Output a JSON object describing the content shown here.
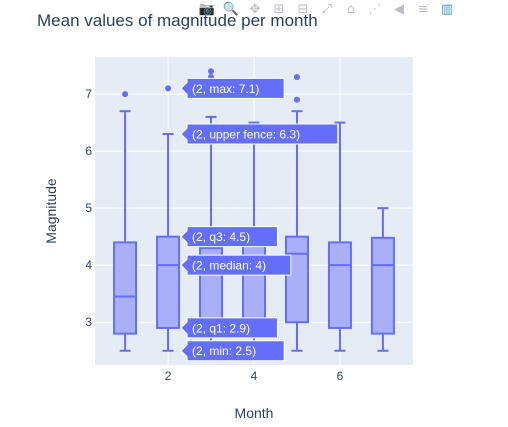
{
  "chart_data": {
    "type": "box",
    "title": "Mean values of magnitude per month",
    "xlabel": "Month",
    "ylabel": "Magnitude",
    "xlim": [
      0.3,
      7.7
    ],
    "ylim": [
      2.25,
      7.65
    ],
    "xticks": [
      2,
      4,
      6
    ],
    "yticks": [
      3,
      4,
      5,
      6,
      7
    ],
    "grid": true,
    "box_color": "#636efa",
    "box_fill": "#aab0f8",
    "plot_bg": "#e5ecf6",
    "boxes": [
      {
        "x": 1,
        "min": 2.5,
        "q1": 2.8,
        "median": 3.45,
        "q3": 4.4,
        "upper_fence": 6.7,
        "outliers": [
          7.0
        ]
      },
      {
        "x": 2,
        "min": 2.5,
        "q1": 2.9,
        "median": 4.0,
        "q3": 4.5,
        "upper_fence": 6.3,
        "outliers": [
          7.1
        ]
      },
      {
        "x": 3,
        "min": 2.5,
        "q1": 2.9,
        "median": 4.3,
        "q3": 4.5,
        "upper_fence": 6.6,
        "outliers": [
          7.3,
          7.4
        ]
      },
      {
        "x": 4,
        "min": 2.5,
        "q1": 2.9,
        "median": 4.0,
        "q3": 4.4,
        "upper_fence": 6.5,
        "outliers": []
      },
      {
        "x": 5,
        "min": 2.5,
        "q1": 3.0,
        "median": 4.2,
        "q3": 4.5,
        "upper_fence": 6.7,
        "outliers": [
          6.9,
          7.3
        ]
      },
      {
        "x": 6,
        "min": 2.5,
        "q1": 2.9,
        "median": 4.0,
        "q3": 4.4,
        "upper_fence": 6.5,
        "outliers": []
      },
      {
        "x": 7,
        "min": 2.5,
        "q1": 2.8,
        "median": 4.0,
        "q3": 4.48,
        "upper_fence": 5.0,
        "outliers": []
      }
    ],
    "hover_box": 2,
    "hover_labels": [
      {
        "text": "(2, max: 7.1)",
        "value": 7.1
      },
      {
        "text": "(2, upper fence: 6.3)",
        "value": 6.3
      },
      {
        "text": "(2, q3: 4.5)",
        "value": 4.5
      },
      {
        "text": "(2, median: 4)",
        "value": 4.0
      },
      {
        "text": "(2, q1: 2.9)",
        "value": 2.9
      },
      {
        "text": "(2, min: 2.5)",
        "value": 2.5
      }
    ]
  },
  "modebar": {
    "icons": [
      "camera-icon",
      "zoom-icon",
      "pan-icon",
      "zoom-in-icon",
      "zoom-out-icon",
      "autoscale-icon",
      "home-icon",
      "spike-lines-icon",
      "hover-closest-icon",
      "hover-compare-icon",
      "plotly-logo-icon"
    ],
    "glyphs": [
      "📷",
      "🔍",
      "✥",
      "⊞",
      "⊟",
      "⤢",
      "⌂",
      "⋰",
      "◀",
      "≡",
      "▥"
    ]
  }
}
